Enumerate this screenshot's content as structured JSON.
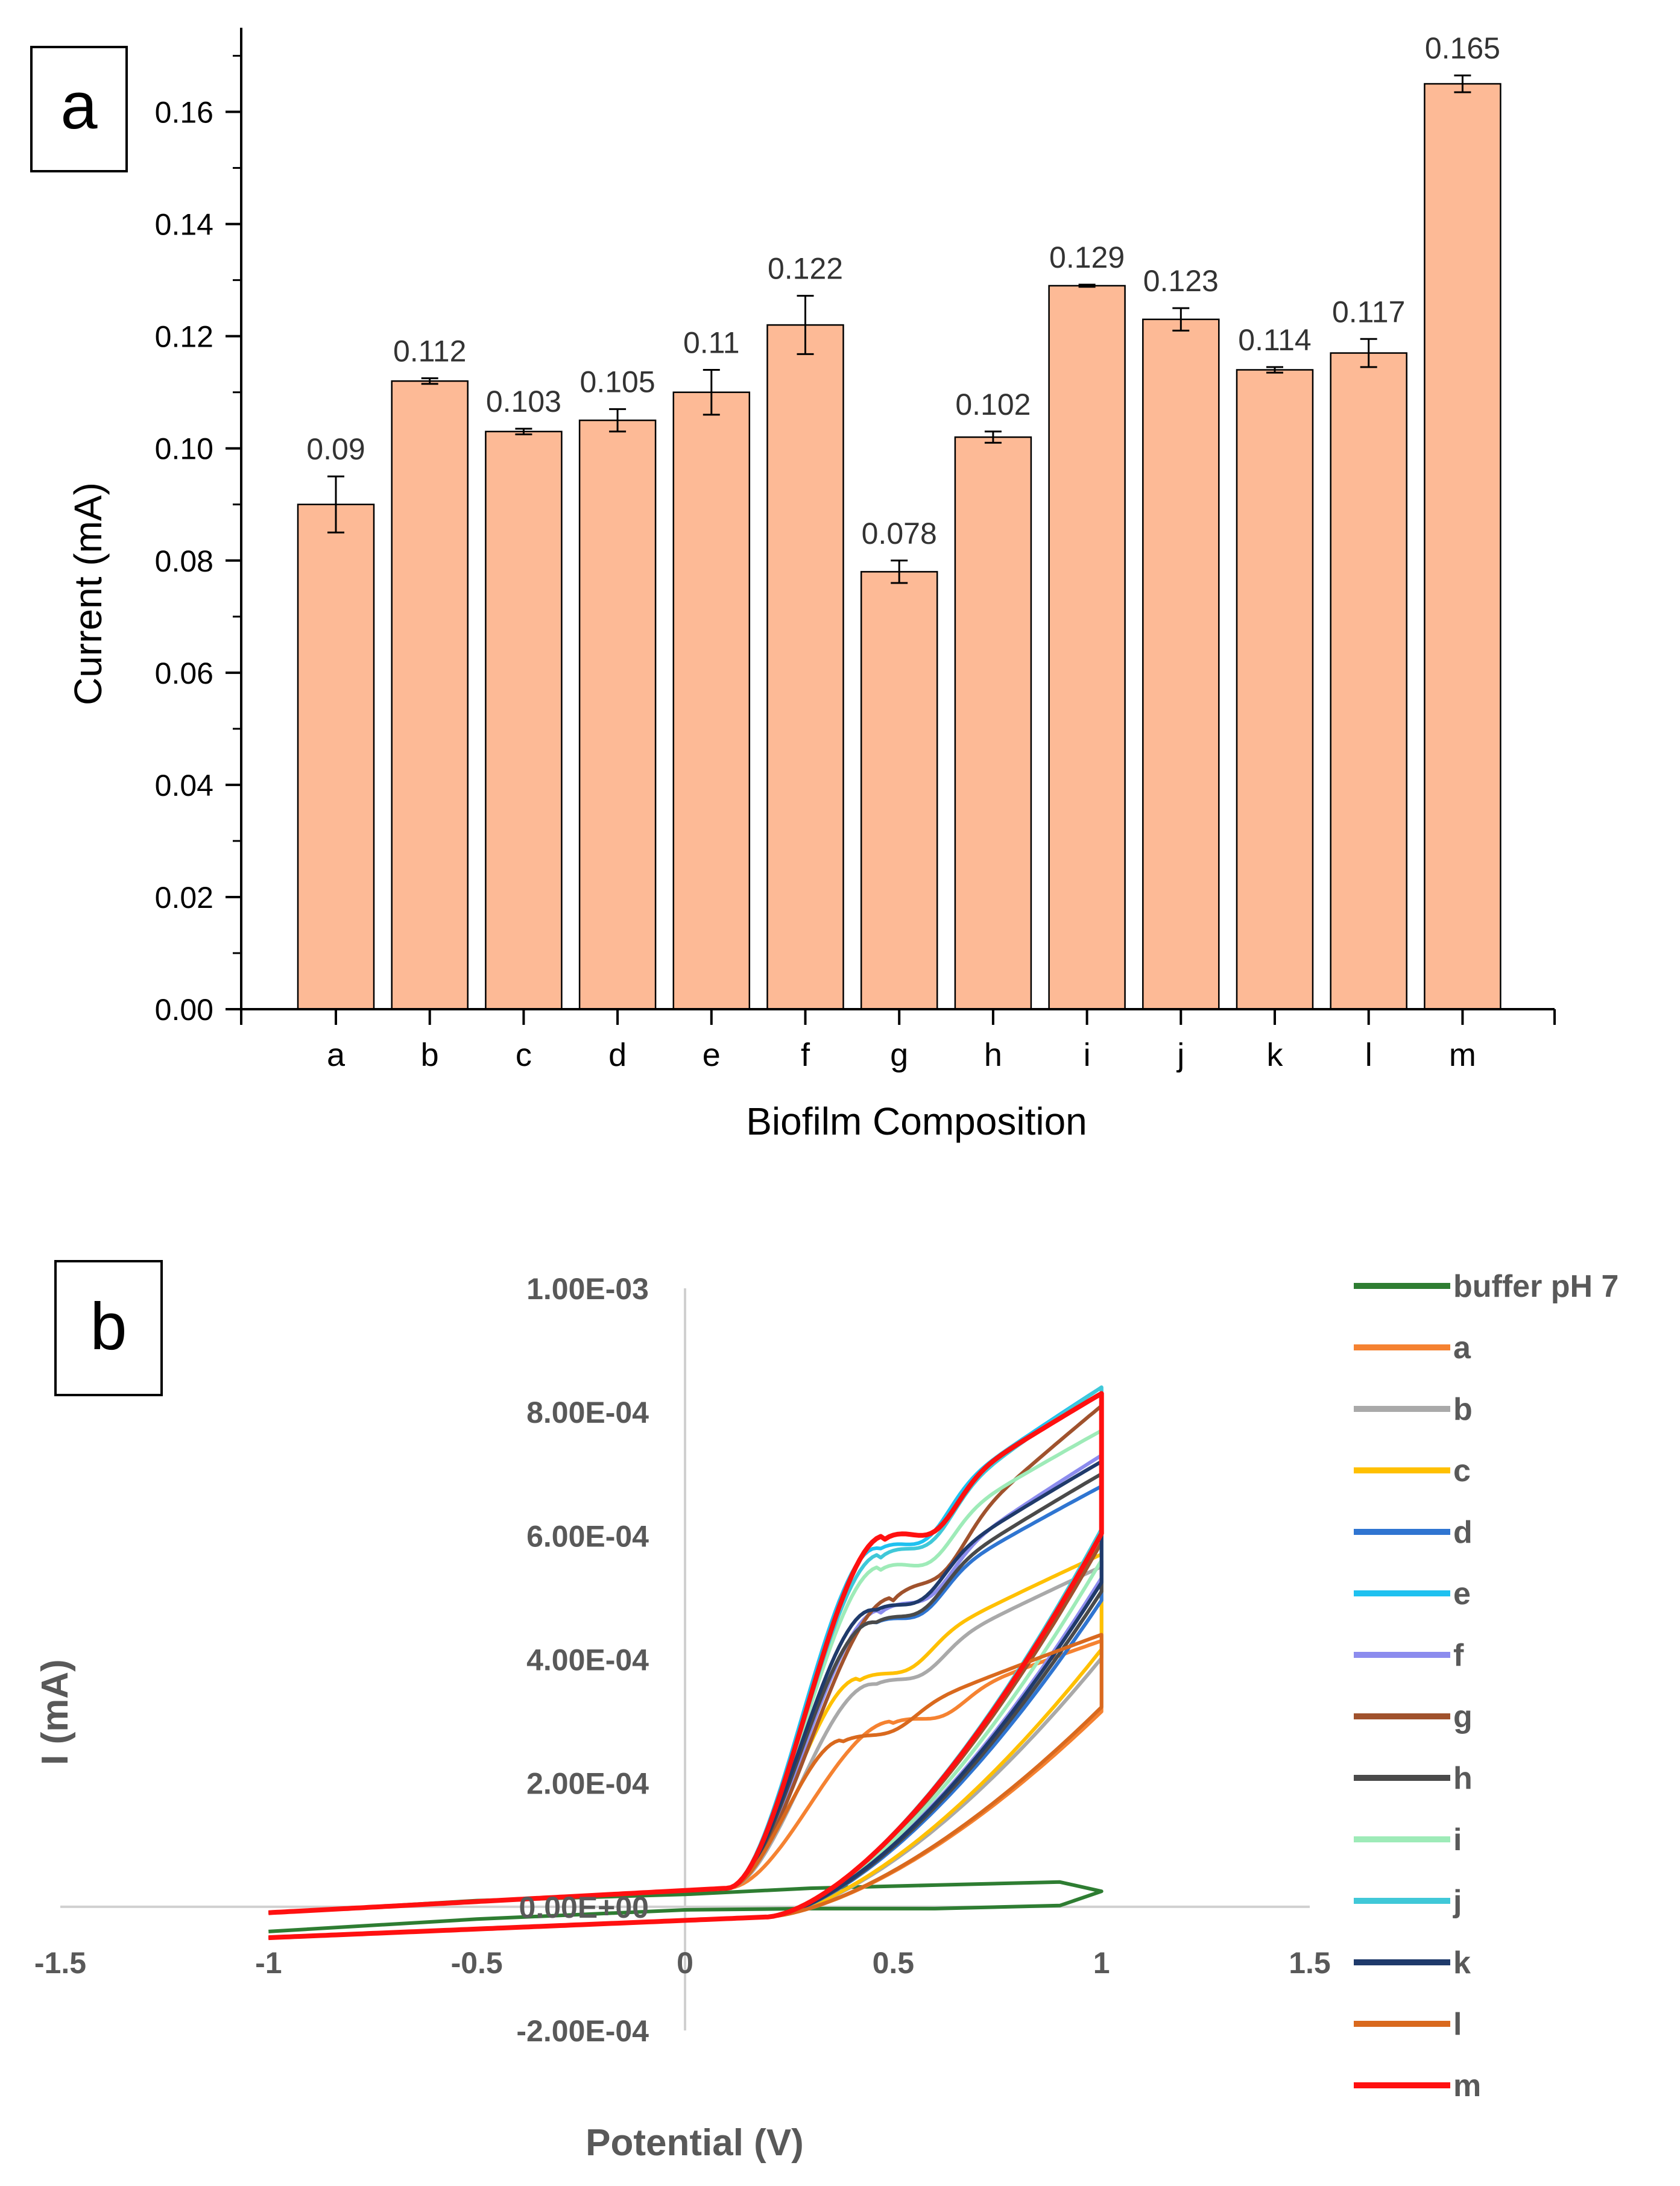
{
  "chart_data": [
    {
      "panel_label": "a",
      "type": "bar",
      "xlabel": "Biofilm Composition",
      "ylabel": "Current (mA)",
      "ylim": [
        0,
        0.175
      ],
      "yticks": [
        "0.00",
        "0.02",
        "0.04",
        "0.06",
        "0.08",
        "0.10",
        "0.12",
        "0.14",
        "0.16"
      ],
      "categories": [
        "a",
        "b",
        "c",
        "d",
        "e",
        "f",
        "g",
        "h",
        "i",
        "j",
        "k",
        "l",
        "m"
      ],
      "values": [
        0.09,
        0.112,
        0.103,
        0.105,
        0.11,
        0.122,
        0.078,
        0.102,
        0.129,
        0.123,
        0.114,
        0.117,
        0.165
      ],
      "value_labels": [
        "0.09",
        "0.112",
        "0.103",
        "0.105",
        "0.11",
        "0.122",
        "0.078",
        "0.102",
        "0.129",
        "0.123",
        "0.114",
        "0.117",
        "0.165"
      ],
      "errors": [
        0.005,
        0.0005,
        0.0005,
        0.002,
        0.004,
        0.0052,
        0.002,
        0.001,
        0.0002,
        0.002,
        0.0005,
        0.0025,
        0.0015
      ],
      "bar_color": "#FDBA96",
      "grid": false
    },
    {
      "panel_label": "b",
      "type": "line",
      "xlabel": "Potential (V)",
      "ylabel": "I (mA)",
      "xlim": [
        -1.5,
        1.5
      ],
      "ylim": [
        -0.0002,
        0.001
      ],
      "xticks": [
        "-1.5",
        "-1",
        "-0.5",
        "0",
        "0.5",
        "1",
        "1.5"
      ],
      "yticks": [
        "-2.00E-04",
        "0.00E+00",
        "2.00E-04",
        "4.00E-04",
        "6.00E-04",
        "8.00E-04",
        "1.00E-03"
      ],
      "legend_position": "right",
      "series": [
        {
          "name": "buffer pH 7",
          "color": "#2E7D32",
          "peak": null,
          "x": [
            -1,
            -0.5,
            0,
            0.3,
            0.6,
            0.9,
            1,
            0.9,
            0.6,
            0.3,
            0,
            -0.5,
            -1
          ],
          "y": [
            -4e-05,
            -2e-05,
            -5e-06,
            -3e-06,
            -3e-06,
            2e-06,
            2.5e-05,
            4e-05,
            3.5e-05,
            3e-05,
            2e-05,
            1e-05,
            -1e-05
          ]
        },
        {
          "name": "a",
          "color": "#F58231",
          "peak": [
            0.5,
            0.0003
          ],
          "max": 0.00043
        },
        {
          "name": "b",
          "color": "#A9A9A9",
          "peak": [
            0.45,
            0.00036
          ],
          "max": 0.00055
        },
        {
          "name": "c",
          "color": "#FFC000",
          "peak": [
            0.42,
            0.00037
          ],
          "max": 0.00057
        },
        {
          "name": "d",
          "color": "#2F75D1",
          "peak": [
            0.45,
            0.00046
          ],
          "max": 0.00068
        },
        {
          "name": "e",
          "color": "#1FC1F0",
          "peak": [
            0.46,
            0.00058
          ],
          "max": 0.00084
        },
        {
          "name": "f",
          "color": "#8C8CEE",
          "peak": [
            0.47,
            0.00048
          ],
          "max": 0.00073
        },
        {
          "name": "g",
          "color": "#A0522D",
          "peak": [
            0.5,
            0.0005
          ],
          "max": 0.00081
        },
        {
          "name": "h",
          "color": "#4A4A4A",
          "peak": [
            0.45,
            0.00046
          ],
          "max": 0.0007
        },
        {
          "name": "i",
          "color": "#9EEBB8",
          "peak": [
            0.47,
            0.00055
          ],
          "max": 0.00077
        },
        {
          "name": "j",
          "color": "#40C8D8",
          "peak": [
            0.47,
            0.00057
          ],
          "max": 0.00084
        },
        {
          "name": "k",
          "color": "#1F3A6B",
          "peak": [
            0.45,
            0.00048
          ],
          "max": 0.00072
        },
        {
          "name": "l",
          "color": "#D9691E",
          "peak": [
            0.38,
            0.00027
          ],
          "max": 0.00044
        },
        {
          "name": "m",
          "color": "#FF1010",
          "peak": [
            0.48,
            0.0006
          ],
          "max": 0.00083
        }
      ]
    }
  ]
}
